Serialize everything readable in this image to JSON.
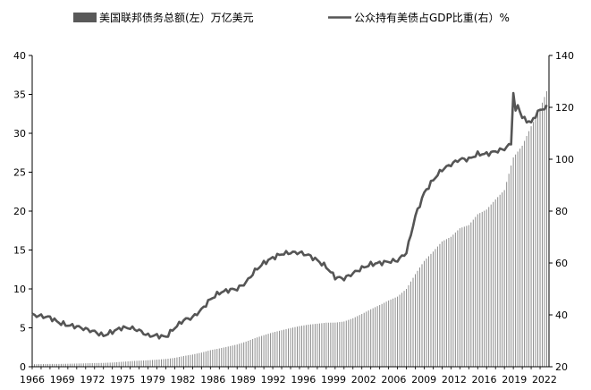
{
  "chart_data": {
    "type": "bar+line",
    "title": "",
    "legend": {
      "placement": "top",
      "items": [
        {
          "key": "debt",
          "label": "美国联邦债务总额(左）万亿美元",
          "marker": "bar"
        },
        {
          "key": "ratio",
          "label": "公众持有美债占GDP比重(右）%",
          "marker": "line"
        }
      ]
    },
    "x_ticks": [
      "1966",
      "1969",
      "1972",
      "1975",
      "1979",
      "1982",
      "1986",
      "1989",
      "1992",
      "1996",
      "1999",
      "2002",
      "2006",
      "2009",
      "2012",
      "2016",
      "2019",
      "2022"
    ],
    "y_left": {
      "min": 0,
      "max": 40,
      "ticks": [
        0,
        5,
        10,
        15,
        20,
        25,
        30,
        35,
        40
      ]
    },
    "y_right": {
      "min": 20,
      "max": 140,
      "ticks": [
        20,
        40,
        60,
        80,
        100,
        120,
        140
      ]
    },
    "quarter_span": {
      "start": 1966.0,
      "end": 2023.75,
      "step": 0.25
    },
    "series": [
      {
        "name": "美国联邦债务总额(左）万亿美元",
        "axis": "left",
        "kind": "bar",
        "color": "#8c8c8c",
        "annual_points": [
          [
            1966,
            0.32
          ],
          [
            1967,
            0.34
          ],
          [
            1968,
            0.36
          ],
          [
            1969,
            0.36
          ],
          [
            1970,
            0.38
          ],
          [
            1971,
            0.41
          ],
          [
            1972,
            0.44
          ],
          [
            1973,
            0.47
          ],
          [
            1974,
            0.49
          ],
          [
            1975,
            0.54
          ],
          [
            1976,
            0.63
          ],
          [
            1977,
            0.71
          ],
          [
            1978,
            0.78
          ],
          [
            1979,
            0.83
          ],
          [
            1980,
            0.91
          ],
          [
            1981,
            1.0
          ],
          [
            1982,
            1.14
          ],
          [
            1983,
            1.38
          ],
          [
            1984,
            1.57
          ],
          [
            1985,
            1.82
          ],
          [
            1986,
            2.13
          ],
          [
            1987,
            2.35
          ],
          [
            1988,
            2.6
          ],
          [
            1989,
            2.86
          ],
          [
            1990,
            3.23
          ],
          [
            1991,
            3.67
          ],
          [
            1992,
            4.06
          ],
          [
            1993,
            4.41
          ],
          [
            1994,
            4.69
          ],
          [
            1995,
            4.97
          ],
          [
            1996,
            5.22
          ],
          [
            1997,
            5.41
          ],
          [
            1998,
            5.53
          ],
          [
            1999,
            5.66
          ],
          [
            2000,
            5.67
          ],
          [
            2001,
            5.81
          ],
          [
            2002,
            6.23
          ],
          [
            2003,
            6.78
          ],
          [
            2004,
            7.38
          ],
          [
            2005,
            7.93
          ],
          [
            2006,
            8.51
          ],
          [
            2007,
            9.01
          ],
          [
            2008,
            10.0
          ],
          [
            2009,
            11.9
          ],
          [
            2010,
            13.6
          ],
          [
            2011,
            14.8
          ],
          [
            2012,
            16.1
          ],
          [
            2013,
            16.7
          ],
          [
            2014,
            17.8
          ],
          [
            2015,
            18.2
          ],
          [
            2016,
            19.6
          ],
          [
            2017,
            20.2
          ],
          [
            2018,
            21.5
          ],
          [
            2019,
            22.7
          ],
          [
            2020,
            26.9
          ],
          [
            2021,
            28.4
          ],
          [
            2022,
            30.9
          ],
          [
            2023,
            33.2
          ],
          [
            2023.75,
            35.4
          ]
        ]
      },
      {
        "name": "公众持有美债占GDP比重(右）%",
        "axis": "right",
        "kind": "line",
        "color": "#555555",
        "annual_points": [
          [
            1966,
            40
          ],
          [
            1967,
            39.5
          ],
          [
            1968,
            39
          ],
          [
            1969,
            37
          ],
          [
            1970,
            36
          ],
          [
            1971,
            35.5
          ],
          [
            1972,
            34.5
          ],
          [
            1973,
            33.5
          ],
          [
            1974,
            32
          ],
          [
            1975,
            33.5
          ],
          [
            1976,
            35
          ],
          [
            1977,
            35
          ],
          [
            1978,
            34
          ],
          [
            1979,
            32
          ],
          [
            1980,
            32
          ],
          [
            1981,
            31.5
          ],
          [
            1982,
            35
          ],
          [
            1983,
            38
          ],
          [
            1984,
            39
          ],
          [
            1985,
            42
          ],
          [
            1986,
            46
          ],
          [
            1987,
            48.5
          ],
          [
            1988,
            49.5
          ],
          [
            1989,
            50
          ],
          [
            1990,
            52.5
          ],
          [
            1991,
            57
          ],
          [
            1992,
            60
          ],
          [
            1993,
            62
          ],
          [
            1994,
            63.5
          ],
          [
            1995,
            64
          ],
          [
            1996,
            64
          ],
          [
            1997,
            63
          ],
          [
            1998,
            61
          ],
          [
            1999,
            58.5
          ],
          [
            2000,
            54.5
          ],
          [
            2001,
            54
          ],
          [
            2002,
            56
          ],
          [
            2003,
            58
          ],
          [
            2004,
            59.5
          ],
          [
            2005,
            60
          ],
          [
            2006,
            60.5
          ],
          [
            2007,
            61
          ],
          [
            2008,
            64
          ],
          [
            2009,
            78
          ],
          [
            2010,
            87
          ],
          [
            2011,
            92
          ],
          [
            2012,
            96
          ],
          [
            2013,
            98
          ],
          [
            2014,
            100
          ],
          [
            2015,
            100
          ],
          [
            2016,
            102
          ],
          [
            2017,
            102
          ],
          [
            2018,
            103
          ],
          [
            2019,
            104
          ],
          [
            2019.75,
            106
          ],
          [
            2020.0,
            126
          ],
          [
            2020.25,
            118
          ],
          [
            2020.5,
            121
          ],
          [
            2021,
            116
          ],
          [
            2022,
            114
          ],
          [
            2022.5,
            117
          ],
          [
            2023,
            119
          ],
          [
            2023.75,
            120
          ]
        ]
      }
    ]
  }
}
